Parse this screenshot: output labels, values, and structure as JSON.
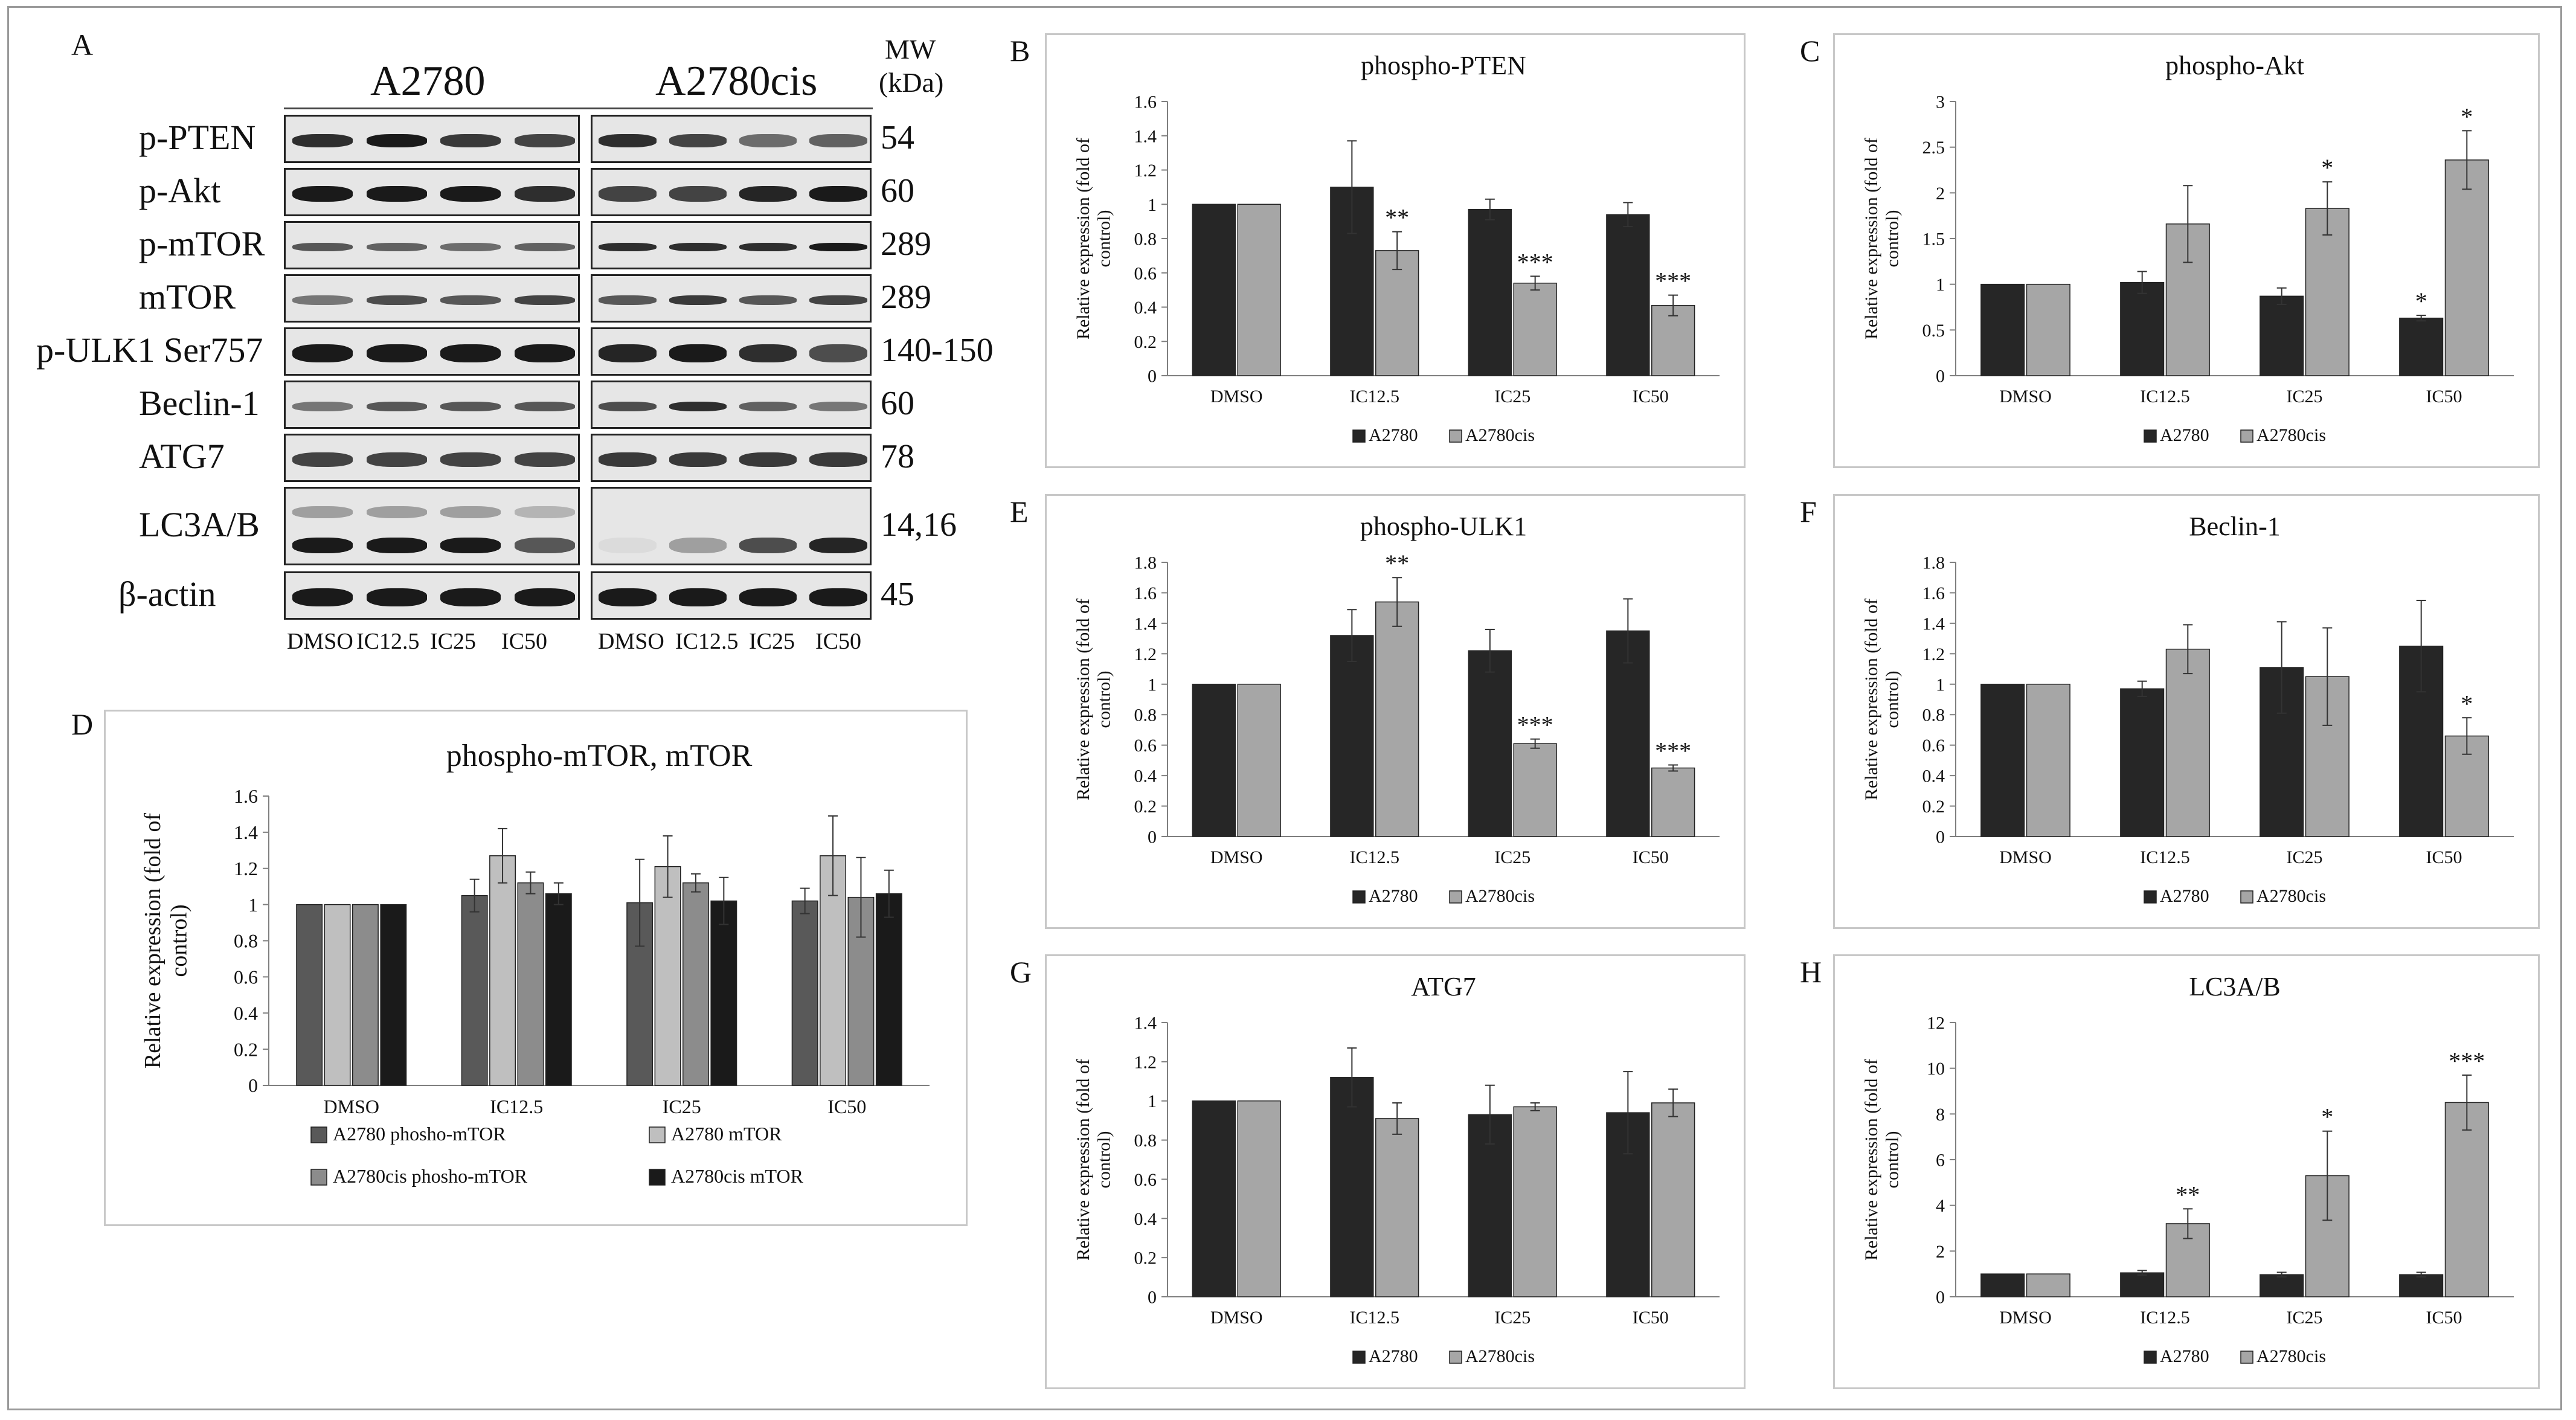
{
  "panel_letters": {
    "A": "A",
    "B": "B",
    "C": "C",
    "D": "D",
    "E": "E",
    "F": "F",
    "G": "G",
    "H": "H"
  },
  "blot": {
    "group_a": "A2780",
    "group_b": "A2780cis",
    "mw_header_line1": "MW",
    "mw_header_line2": "(kDa)",
    "rows": [
      {
        "label": "p-PTEN",
        "mw": "54"
      },
      {
        "label": "p-Akt",
        "mw": "60"
      },
      {
        "label": "p-mTOR",
        "mw": "289"
      },
      {
        "label": "mTOR",
        "mw": "289"
      },
      {
        "label": "p-ULK1 Ser757",
        "mw": "140-150"
      },
      {
        "label": "Beclin-1",
        "mw": "60"
      },
      {
        "label": "ATG7",
        "mw": "78"
      },
      {
        "label": "LC3A/B",
        "mw": "14,16"
      },
      {
        "label": "β-actin",
        "mw": "45"
      }
    ],
    "lanes_a": [
      "DMSO",
      "IC12.5",
      "IC25",
      "IC50"
    ],
    "lanes_b": [
      "DMSO",
      "IC12.5",
      "IC25",
      "IC50"
    ]
  },
  "colors": {
    "a2780": "#262626",
    "a2780cis": "#a6a6a6",
    "d_pmtor_a": "#595959",
    "d_mtor_a": "#bfbfbf",
    "d_pmtor_cis": "#8c8c8c",
    "d_mtor_cis": "#1a1a1a"
  },
  "chart_data": [
    {
      "id": "B",
      "type": "bar",
      "title": "phospho-PTEN",
      "ylabel": "Relative expression (fold of control)",
      "categories": [
        "DMSO",
        "IC12.5",
        "IC25",
        "IC50"
      ],
      "ylim": [
        0,
        1.6
      ],
      "yticks": [
        "0",
        "0.2",
        "0.4",
        "0.6",
        "0.8",
        "1",
        "1.2",
        "1.4",
        "1.6"
      ],
      "series": [
        {
          "name": "A2780",
          "values": [
            1.0,
            1.1,
            0.97,
            0.94
          ],
          "errors": [
            0,
            0.27,
            0.06,
            0.07
          ],
          "stars": [
            "",
            "",
            "",
            ""
          ]
        },
        {
          "name": "A2780cis",
          "values": [
            1.0,
            0.73,
            0.54,
            0.41
          ],
          "errors": [
            0,
            0.11,
            0.04,
            0.06
          ],
          "stars": [
            "",
            "**",
            "***",
            "***"
          ]
        }
      ]
    },
    {
      "id": "C",
      "type": "bar",
      "title": "phospho-Akt",
      "ylabel": "Relative expression (fold of control)",
      "categories": [
        "DMSO",
        "IC12.5",
        "IC25",
        "IC50"
      ],
      "ylim": [
        0,
        3
      ],
      "yticks": [
        "0",
        "0.5",
        "1",
        "1.5",
        "2",
        "2.5",
        "3"
      ],
      "series": [
        {
          "name": "A2780",
          "values": [
            1.0,
            1.02,
            0.87,
            0.63
          ],
          "errors": [
            0,
            0.12,
            0.09,
            0.03
          ],
          "stars": [
            "",
            "",
            "",
            "*"
          ]
        },
        {
          "name": "A2780cis",
          "values": [
            1.0,
            1.66,
            1.83,
            2.36
          ],
          "errors": [
            0,
            0.42,
            0.29,
            0.32
          ],
          "stars": [
            "",
            "",
            "*",
            "*"
          ]
        }
      ]
    },
    {
      "id": "D",
      "type": "bar",
      "title": "phospho-mTOR, mTOR",
      "ylabel": "Relative expression (fold of control)",
      "categories": [
        "DMSO",
        "IC12.5",
        "IC25",
        "IC50"
      ],
      "ylim": [
        0,
        1.6
      ],
      "yticks": [
        "0",
        "0.2",
        "0.4",
        "0.6",
        "0.8",
        "1",
        "1.2",
        "1.4",
        "1.6"
      ],
      "series": [
        {
          "name": "A2780 phosho-mTOR",
          "values": [
            1.0,
            1.05,
            1.01,
            1.02
          ],
          "errors": [
            0,
            0.09,
            0.24,
            0.07
          ],
          "stars": [
            "",
            "",
            "",
            ""
          ]
        },
        {
          "name": "A2780 mTOR",
          "values": [
            1.0,
            1.27,
            1.21,
            1.27
          ],
          "errors": [
            0,
            0.15,
            0.17,
            0.22
          ],
          "stars": [
            "",
            "",
            "",
            ""
          ]
        },
        {
          "name": "A2780cis phosho-mTOR",
          "values": [
            1.0,
            1.12,
            1.12,
            1.04
          ],
          "errors": [
            0,
            0.06,
            0.05,
            0.22
          ],
          "stars": [
            "",
            "",
            "",
            ""
          ]
        },
        {
          "name": "A2780cis mTOR",
          "values": [
            1.0,
            1.06,
            1.02,
            1.06
          ],
          "errors": [
            0,
            0.06,
            0.13,
            0.13
          ],
          "stars": [
            "",
            "",
            "",
            ""
          ]
        }
      ]
    },
    {
      "id": "E",
      "type": "bar",
      "title": "phospho-ULK1",
      "ylabel": "Relative expression (fold of control)",
      "categories": [
        "DMSO",
        "IC12.5",
        "IC25",
        "IC50"
      ],
      "ylim": [
        0,
        1.8
      ],
      "yticks": [
        "0",
        "0.2",
        "0.4",
        "0.6",
        "0.8",
        "1",
        "1.2",
        "1.4",
        "1.6",
        "1.8"
      ],
      "series": [
        {
          "name": "A2780",
          "values": [
            1.0,
            1.32,
            1.22,
            1.35
          ],
          "errors": [
            0,
            0.17,
            0.14,
            0.21
          ],
          "stars": [
            "",
            "",
            "",
            ""
          ]
        },
        {
          "name": "A2780cis",
          "values": [
            1.0,
            1.54,
            0.61,
            0.45
          ],
          "errors": [
            0,
            0.16,
            0.03,
            0.02
          ],
          "stars": [
            "",
            "**",
            "***",
            "***"
          ]
        }
      ]
    },
    {
      "id": "F",
      "type": "bar",
      "title": "Beclin-1",
      "ylabel": "Relative expression (fold of control)",
      "categories": [
        "DMSO",
        "IC12.5",
        "IC25",
        "IC50"
      ],
      "ylim": [
        0,
        1.8
      ],
      "yticks": [
        "0",
        "0.2",
        "0.4",
        "0.6",
        "0.8",
        "1",
        "1.2",
        "1.4",
        "1.6",
        "1.8"
      ],
      "series": [
        {
          "name": "A2780",
          "values": [
            1.0,
            0.97,
            1.11,
            1.25
          ],
          "errors": [
            0,
            0.05,
            0.3,
            0.3
          ],
          "stars": [
            "",
            "",
            "",
            ""
          ]
        },
        {
          "name": "A2780cis",
          "values": [
            1.0,
            1.23,
            1.05,
            0.66
          ],
          "errors": [
            0,
            0.16,
            0.32,
            0.12
          ],
          "stars": [
            "",
            "",
            "",
            "*"
          ]
        }
      ]
    },
    {
      "id": "G",
      "type": "bar",
      "title": "ATG7",
      "ylabel": "Relative expression (fold of control)",
      "categories": [
        "DMSO",
        "IC12.5",
        "IC25",
        "IC50"
      ],
      "ylim": [
        0,
        1.4
      ],
      "yticks": [
        "0",
        "0.2",
        "0.4",
        "0.6",
        "0.8",
        "1",
        "1.2",
        "1.4"
      ],
      "series": [
        {
          "name": "A2780",
          "values": [
            1.0,
            1.12,
            0.93,
            0.94
          ],
          "errors": [
            0,
            0.15,
            0.15,
            0.21
          ],
          "stars": [
            "",
            "",
            "",
            ""
          ]
        },
        {
          "name": "A2780cis",
          "values": [
            1.0,
            0.91,
            0.97,
            0.99
          ],
          "errors": [
            0,
            0.08,
            0.02,
            0.07
          ],
          "stars": [
            "",
            "",
            "",
            ""
          ]
        }
      ]
    },
    {
      "id": "H",
      "type": "bar",
      "title": "LC3A/B",
      "ylabel": "Relative expression (fold of control)",
      "categories": [
        "DMSO",
        "IC12.5",
        "IC25",
        "IC50"
      ],
      "ylim": [
        0,
        12
      ],
      "yticks": [
        "0",
        "2",
        "4",
        "6",
        "8",
        "10",
        "12"
      ],
      "series": [
        {
          "name": "A2780",
          "values": [
            1.0,
            1.05,
            0.97,
            0.97
          ],
          "errors": [
            0,
            0.1,
            0.1,
            0.1
          ],
          "stars": [
            "",
            "",
            "",
            ""
          ]
        },
        {
          "name": "A2780cis",
          "values": [
            1.0,
            3.2,
            5.3,
            8.5
          ],
          "errors": [
            0,
            0.65,
            1.95,
            1.2
          ],
          "stars": [
            "",
            "**",
            "*",
            "***"
          ]
        }
      ]
    }
  ]
}
